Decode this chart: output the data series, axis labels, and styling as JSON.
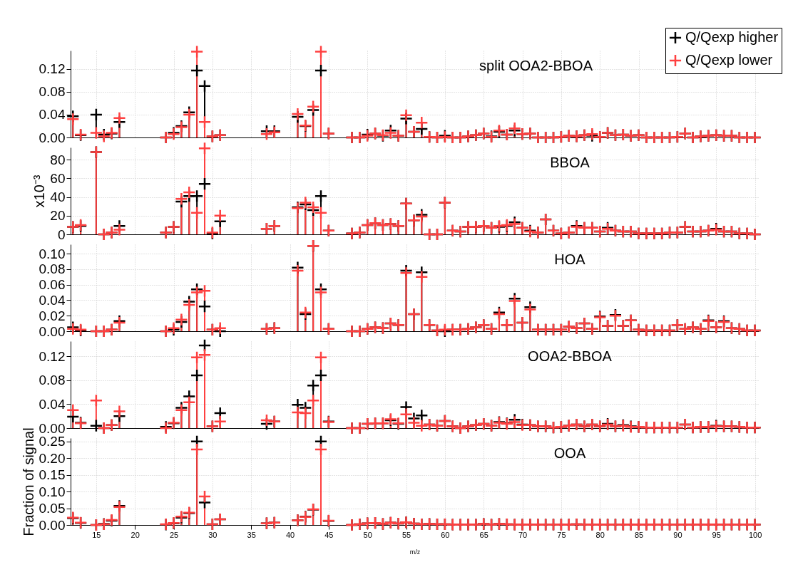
{
  "chart_data": [
    {
      "type": "lollipop",
      "title": "split OOA2-BBOA",
      "x": [
        12,
        13,
        15,
        16,
        17,
        18,
        24,
        25,
        26,
        27,
        28,
        29,
        30,
        31,
        37,
        38,
        41,
        42,
        43,
        44,
        45,
        48,
        49,
        50,
        51,
        52,
        53,
        54,
        55,
        56,
        57,
        58,
        59,
        60,
        61,
        62,
        63,
        64,
        65,
        66,
        67,
        68,
        69,
        70,
        71,
        72,
        73,
        74,
        75,
        76,
        77,
        78,
        79,
        80,
        81,
        82,
        83,
        84,
        85,
        86,
        87,
        88,
        89,
        90,
        91,
        92,
        93,
        94,
        95,
        96,
        97,
        98,
        99,
        100
      ],
      "xlim": [
        11.7,
        100.5
      ],
      "xticks": [
        15,
        20,
        25,
        30,
        35,
        40,
        45,
        50,
        55,
        60,
        65,
        70,
        75,
        80,
        85,
        90,
        95,
        100
      ],
      "ylim": [
        0,
        0.152
      ],
      "yticks": [
        {
          "value": 0,
          "label": "0.00"
        },
        {
          "value": 0.04,
          "label": "0.04"
        },
        {
          "value": 0.08,
          "label": "0.08"
        },
        {
          "value": 0.12,
          "label": "0.12"
        }
      ],
      "tick_labels": "y",
      "grid": true,
      "marker": "cross",
      "legend": "top right",
      "series": [
        {
          "name": "Q/Qexp higher",
          "color": "#000000",
          "values": [
            0.037,
            0.004,
            0.04,
            0.005,
            0.007,
            0.027,
            0,
            0.008,
            0.02,
            0.044,
            0.117,
            0.09,
            0.002,
            0.004,
            0.011,
            0.011,
            0.036,
            0.02,
            0.048,
            0.117,
            0.007,
            0,
            0,
            0.005,
            0.007,
            0.003,
            0.012,
            0.003,
            0.033,
            0.01,
            0.015,
            0.001,
            0,
            0.003,
            0,
            0,
            0.002,
            0.004,
            0.007,
            0.002,
            0.01,
            0.005,
            0.012,
            0.006,
            0.007,
            0,
            0,
            0,
            0.001,
            0.003,
            0.002,
            0.004,
            0.003,
            0.001,
            0.008,
            0.004,
            0.005,
            0.003,
            0.004,
            0,
            0,
            0,
            0,
            0.001,
            0.007,
            0,
            0.002,
            0.003,
            0.004,
            0.003,
            0.003,
            0,
            0,
            0
          ]
        },
        {
          "name": "Q/Qexp lower",
          "color": "#ff4040",
          "values": [
            0.032,
            0.005,
            0.008,
            0.002,
            0.008,
            0.034,
            0,
            0.006,
            0.018,
            0.04,
            0.15,
            0.027,
            0.002,
            0.004,
            0.006,
            0.009,
            0.041,
            0.021,
            0.054,
            0.15,
            0.007,
            0,
            0,
            0.003,
            0.007,
            0.004,
            0.008,
            0.003,
            0.039,
            0.01,
            0.026,
            0.001,
            0,
            0.001,
            0,
            0,
            0.002,
            0.004,
            0.007,
            0.001,
            0.012,
            0.005,
            0.016,
            0.006,
            0.007,
            0,
            0,
            0,
            0.001,
            0.003,
            0.002,
            0.004,
            0.006,
            0.001,
            0.008,
            0.004,
            0.005,
            0.003,
            0.004,
            0,
            0,
            0,
            0,
            0.001,
            0.007,
            0,
            0.002,
            0.003,
            0.004,
            0.003,
            0.003,
            0,
            0,
            0
          ]
        }
      ]
    },
    {
      "type": "lollipop",
      "title": "BBOA",
      "ylabel": "x10⁻³",
      "x": [
        12,
        13,
        15,
        16,
        17,
        18,
        24,
        25,
        26,
        27,
        28,
        29,
        30,
        31,
        37,
        38,
        41,
        42,
        43,
        44,
        45,
        48,
        49,
        50,
        51,
        52,
        53,
        54,
        55,
        56,
        57,
        58,
        59,
        60,
        61,
        62,
        63,
        64,
        65,
        66,
        67,
        68,
        69,
        70,
        71,
        72,
        73,
        74,
        75,
        76,
        77,
        78,
        79,
        80,
        81,
        82,
        83,
        84,
        85,
        86,
        87,
        88,
        89,
        90,
        91,
        92,
        93,
        94,
        95,
        96,
        97,
        98,
        99,
        100
      ],
      "xlim": [
        11.7,
        100.5
      ],
      "xticks": [
        15,
        20,
        25,
        30,
        35,
        40,
        45,
        50,
        55,
        60,
        65,
        70,
        75,
        80,
        85,
        90,
        95,
        100
      ],
      "ylim": [
        0,
        93
      ],
      "yticks": [
        0,
        20,
        40,
        60,
        80
      ],
      "tick_labels": "y",
      "grid": true,
      "marker": "cross",
      "series": [
        {
          "color": "#000000",
          "values": [
            8,
            9,
            88,
            0,
            2,
            9,
            2,
            8,
            35,
            41,
            41,
            54,
            1,
            14,
            6,
            9,
            29,
            32,
            26,
            41,
            4,
            1,
            2,
            10,
            12,
            10,
            11,
            9,
            33,
            15,
            21,
            0,
            0,
            34,
            4,
            3,
            8,
            8,
            9,
            7,
            8,
            9,
            13,
            7,
            4,
            2,
            16,
            4,
            1,
            2,
            9,
            7,
            7,
            3,
            7,
            4,
            3,
            3,
            1,
            1,
            1,
            1,
            2,
            2,
            8,
            3,
            3,
            4,
            6,
            3,
            3,
            1,
            1,
            0
          ]
        },
        {
          "color": "#ff4040",
          "values": [
            8,
            10,
            88,
            0,
            2,
            5,
            2,
            8,
            38,
            45,
            23,
            92,
            2,
            20,
            6,
            9,
            28,
            34,
            29,
            23,
            4,
            1,
            2,
            10,
            12,
            10,
            11,
            9,
            33,
            15,
            19,
            0,
            0,
            34,
            4,
            3,
            8,
            8,
            9,
            7,
            9,
            10,
            11,
            7,
            3,
            2,
            16,
            4,
            1,
            2,
            8,
            7,
            7,
            3,
            6,
            4,
            3,
            3,
            1,
            1,
            1,
            1,
            2,
            2,
            8,
            3,
            3,
            4,
            5,
            3,
            3,
            1,
            1,
            0
          ]
        }
      ]
    },
    {
      "type": "lollipop",
      "title": "HOA",
      "x": [
        12,
        13,
        15,
        16,
        17,
        18,
        24,
        25,
        26,
        27,
        28,
        29,
        30,
        31,
        37,
        38,
        41,
        42,
        43,
        44,
        45,
        48,
        49,
        50,
        51,
        52,
        53,
        54,
        55,
        56,
        57,
        58,
        59,
        60,
        61,
        62,
        63,
        64,
        65,
        66,
        67,
        68,
        69,
        70,
        71,
        72,
        73,
        74,
        75,
        76,
        77,
        78,
        79,
        80,
        81,
        82,
        83,
        84,
        85,
        86,
        87,
        88,
        89,
        90,
        91,
        92,
        93,
        94,
        95,
        96,
        97,
        98,
        99,
        100
      ],
      "xlim": [
        11.7,
        100.5
      ],
      "xticks": [
        15,
        20,
        25,
        30,
        35,
        40,
        45,
        50,
        55,
        60,
        65,
        70,
        75,
        80,
        85,
        90,
        95,
        100
      ],
      "ylim": [
        0,
        0.112
      ],
      "yticks": [
        {
          "value": 0,
          "label": "0.00"
        },
        {
          "value": 0.02,
          "label": "0.02"
        },
        {
          "value": 0.04,
          "label": "0.04"
        },
        {
          "value": 0.06,
          "label": "0.06"
        },
        {
          "value": 0.08,
          "label": "0.08"
        },
        {
          "value": 0.1,
          "label": "0.10"
        }
      ],
      "tick_labels": "y",
      "grid": true,
      "marker": "cross",
      "series": [
        {
          "color": "#000000",
          "values": [
            0.005,
            0.001,
            0,
            0,
            0.002,
            0.013,
            0,
            0.002,
            0.012,
            0.038,
            0.054,
            0.032,
            0.002,
            0,
            0.003,
            0.004,
            0.082,
            0.022,
            0.11,
            0.054,
            0.003,
            0,
            0,
            0.003,
            0.005,
            0.004,
            0.01,
            0.008,
            0.078,
            0.022,
            0.076,
            0.008,
            0.001,
            0,
            0.002,
            0.002,
            0.003,
            0.005,
            0.008,
            0.003,
            0.024,
            0.008,
            0.042,
            0.011,
            0.031,
            0.002,
            0.002,
            0.002,
            0.002,
            0.006,
            0.004,
            0.01,
            0.003,
            0.019,
            0.007,
            0.021,
            0.007,
            0.014,
            0.002,
            0.001,
            0.001,
            0.001,
            0.001,
            0.008,
            0.003,
            0.005,
            0.003,
            0.014,
            0.005,
            0.013,
            0.004,
            0.003,
            0.001,
            0.001
          ]
        },
        {
          "color": "#ff4040",
          "values": [
            0.003,
            0.002,
            0,
            0,
            0.002,
            0.011,
            0,
            0.004,
            0.015,
            0.034,
            0.05,
            0.052,
            0.002,
            0.004,
            0.003,
            0.004,
            0.078,
            0.024,
            0.11,
            0.05,
            0.003,
            0,
            0,
            0.003,
            0.005,
            0.004,
            0.01,
            0.008,
            0.075,
            0.022,
            0.07,
            0.008,
            0.001,
            0.002,
            0.002,
            0.002,
            0.003,
            0.005,
            0.008,
            0.003,
            0.022,
            0.008,
            0.039,
            0.011,
            0.028,
            0.002,
            0.002,
            0.002,
            0.002,
            0.006,
            0.004,
            0.01,
            0.003,
            0.018,
            0.007,
            0.02,
            0.007,
            0.014,
            0.002,
            0.001,
            0.001,
            0.001,
            0.001,
            0.008,
            0.003,
            0.005,
            0.003,
            0.013,
            0.005,
            0.012,
            0.004,
            0.003,
            0.001,
            0.001
          ]
        }
      ]
    },
    {
      "type": "lollipop",
      "title": "OOA2-BBOA",
      "x": [
        12,
        13,
        15,
        16,
        17,
        18,
        24,
        25,
        26,
        27,
        28,
        29,
        30,
        31,
        37,
        38,
        41,
        42,
        43,
        44,
        45,
        48,
        49,
        50,
        51,
        52,
        53,
        54,
        55,
        56,
        57,
        58,
        59,
        60,
        61,
        62,
        63,
        64,
        65,
        66,
        67,
        68,
        69,
        70,
        71,
        72,
        73,
        74,
        75,
        76,
        77,
        78,
        79,
        80,
        81,
        82,
        83,
        84,
        85,
        86,
        87,
        88,
        89,
        90,
        91,
        92,
        93,
        94,
        95,
        96,
        97,
        98,
        99,
        100
      ],
      "xlim": [
        11.7,
        100.5
      ],
      "xticks": [
        15,
        20,
        25,
        30,
        35,
        40,
        45,
        50,
        55,
        60,
        65,
        70,
        75,
        80,
        85,
        90,
        95,
        100
      ],
      "ylim": [
        0,
        0.145
      ],
      "yticks": [
        {
          "value": 0,
          "label": "0.00"
        },
        {
          "value": 0.04,
          "label": "0.04"
        },
        {
          "value": 0.08,
          "label": "0.08"
        },
        {
          "value": 0.12,
          "label": "0.12"
        }
      ],
      "tick_labels": "y",
      "grid": true,
      "marker": "cross",
      "series": [
        {
          "color": "#000000",
          "values": [
            0.019,
            0.009,
            0.004,
            0,
            0.005,
            0.02,
            0.002,
            0.008,
            0.034,
            0.053,
            0.088,
            0.138,
            0.003,
            0.025,
            0.007,
            0.011,
            0.039,
            0.034,
            0.071,
            0.088,
            0.011,
            0,
            0,
            0.007,
            0.008,
            0.008,
            0.013,
            0.007,
            0.035,
            0.016,
            0.021,
            0.006,
            0.004,
            0.012,
            0.003,
            0,
            0.003,
            0.005,
            0.007,
            0.004,
            0.01,
            0.008,
            0.014,
            0.006,
            0.005,
            0.003,
            0.003,
            0.001,
            0.002,
            0.004,
            0.006,
            0.003,
            0.006,
            0.003,
            0.007,
            0.003,
            0.005,
            0.003,
            0.002,
            0.001,
            0.001,
            0.001,
            0.001,
            0.001,
            0.006,
            0.001,
            0.002,
            0.002,
            0.004,
            0.003,
            0.003,
            0.002,
            0.001,
            0.001
          ]
        },
        {
          "color": "#ff4040",
          "values": [
            0.03,
            0.008,
            0.046,
            0,
            0.005,
            0.028,
            0,
            0.009,
            0.03,
            0.043,
            0.118,
            0.122,
            0.003,
            0.011,
            0.013,
            0.011,
            0.026,
            0.025,
            0.046,
            0.118,
            0.01,
            0,
            0,
            0.007,
            0.008,
            0.008,
            0.015,
            0.008,
            0.023,
            0.009,
            0.004,
            0.006,
            0.004,
            0.012,
            0.003,
            0,
            0.003,
            0.005,
            0.007,
            0.004,
            0.009,
            0.007,
            0.01,
            0.005,
            0.005,
            0.003,
            0.003,
            0.001,
            0.002,
            0.004,
            0.006,
            0.003,
            0.006,
            0.003,
            0.006,
            0.003,
            0.004,
            0.002,
            0.002,
            0.001,
            0.001,
            0.001,
            0.001,
            0.001,
            0.006,
            0.001,
            0.002,
            0.002,
            0.003,
            0.003,
            0.003,
            0.002,
            0.001,
            0.001
          ]
        }
      ]
    },
    {
      "type": "lollipop",
      "title": "OOA",
      "xlabel": "m/z",
      "ylabel": "Fraction of signal",
      "x": [
        12,
        13,
        15,
        16,
        17,
        18,
        24,
        25,
        26,
        27,
        28,
        29,
        30,
        31,
        37,
        38,
        41,
        42,
        43,
        44,
        45,
        48,
        49,
        50,
        51,
        52,
        53,
        54,
        55,
        56,
        57,
        58,
        59,
        60,
        61,
        62,
        63,
        64,
        65,
        66,
        67,
        68,
        69,
        70,
        71,
        72,
        73,
        74,
        75,
        76,
        77,
        78,
        79,
        80,
        81,
        82,
        83,
        84,
        85,
        86,
        87,
        88,
        89,
        90,
        91,
        92,
        93,
        94,
        95,
        96,
        97,
        98,
        99,
        100
      ],
      "xlim": [
        11.7,
        100.5
      ],
      "xticks": [
        15,
        20,
        25,
        30,
        35,
        40,
        45,
        50,
        55,
        60,
        65,
        70,
        75,
        80,
        85,
        90,
        95,
        100
      ],
      "ylim": [
        0,
        0.26
      ],
      "yticks": [
        {
          "value": 0,
          "label": "0.00"
        },
        {
          "value": 0.05,
          "label": "0.05"
        },
        {
          "value": 0.1,
          "label": "0.10"
        },
        {
          "value": 0.15,
          "label": "0.15"
        },
        {
          "value": 0.2,
          "label": "0.20"
        },
        {
          "value": 0.25,
          "label": "0.25"
        }
      ],
      "grid": true,
      "marker": "cross",
      "series": [
        {
          "color": "#000000",
          "values": [
            0.02,
            0.006,
            0,
            0.003,
            0.013,
            0.057,
            0.001,
            0.005,
            0.022,
            0.035,
            0.25,
            0.067,
            0.002,
            0.017,
            0.005,
            0.007,
            0.014,
            0.025,
            0.046,
            0.25,
            0.012,
            0,
            0.002,
            0.005,
            0.006,
            0.003,
            0.007,
            0.004,
            0.008,
            0.004,
            0.002,
            0.003,
            0.002,
            0.002,
            0.001,
            0.001,
            0.001,
            0.001,
            0.003,
            0.001,
            0.003,
            0.002,
            0.001,
            0.001,
            0.001,
            0.001,
            0.001,
            0.001,
            0.001,
            0.001,
            0.002,
            0.001,
            0.001,
            0.001,
            0.001,
            0.001,
            0.001,
            0.001,
            0.001,
            0.001,
            0.001,
            0.001,
            0.001,
            0.001,
            0.001,
            0.001,
            0.001,
            0.001,
            0.001,
            0.001,
            0.001,
            0.001,
            0.001,
            0.001
          ]
        },
        {
          "color": "#ff4040",
          "values": [
            0.022,
            0.007,
            0,
            0.002,
            0.015,
            0.054,
            0.002,
            0.006,
            0.025,
            0.037,
            0.226,
            0.085,
            0.002,
            0.017,
            0.005,
            0.007,
            0.014,
            0.024,
            0.047,
            0.226,
            0.013,
            0,
            0.002,
            0.005,
            0.006,
            0.003,
            0.007,
            0.004,
            0.008,
            0.004,
            0.002,
            0.003,
            0.002,
            0.002,
            0.001,
            0.001,
            0.001,
            0.001,
            0.003,
            0.001,
            0.003,
            0.002,
            0.001,
            0.001,
            0.001,
            0.001,
            0.001,
            0.001,
            0.001,
            0.001,
            0.002,
            0.001,
            0.001,
            0.001,
            0.001,
            0.001,
            0.001,
            0.001,
            0.001,
            0.001,
            0.001,
            0.001,
            0.001,
            0.001,
            0.001,
            0.001,
            0.001,
            0.001,
            0.001,
            0.001,
            0.001,
            0.001,
            0.001,
            0.001
          ]
        }
      ]
    }
  ]
}
